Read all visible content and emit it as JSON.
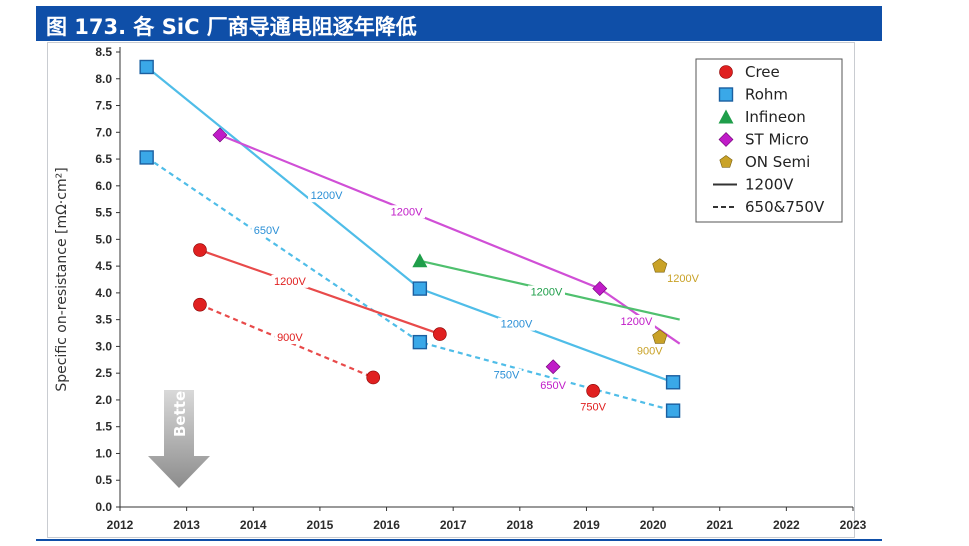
{
  "header": {
    "title": "图 173.  各 SiC 厂商导通电阻逐年降低"
  },
  "chart_data": {
    "type": "scatter",
    "title": "",
    "xlabel": "",
    "ylabel": "Specific on-resistance [mΩ·cm²]",
    "xlim": [
      2012,
      2023
    ],
    "ylim": [
      0,
      8.5
    ],
    "x_ticks": [
      2012,
      2013,
      2014,
      2015,
      2016,
      2017,
      2018,
      2019,
      2020,
      2021,
      2022,
      2023
    ],
    "y_ticks": [
      "0.0",
      "0.5",
      "1.0",
      "1.5",
      "2.0",
      "2.5",
      "3.0",
      "3.5",
      "4.0",
      "4.5",
      "5.0",
      "5.5",
      "6.0",
      "6.5",
      "7.0",
      "7.5",
      "8.0",
      "8.5"
    ],
    "grid": false,
    "legend_position": "top-right",
    "series": [
      {
        "name": "Cree",
        "marker": "circle",
        "color": "#e02020",
        "points": [
          [
            2013.2,
            4.8
          ],
          [
            2013.2,
            3.78
          ],
          [
            2015.8,
            2.42
          ],
          [
            2016.8,
            3.23
          ],
          [
            2019.1,
            2.17
          ]
        ]
      },
      {
        "name": "Rohm",
        "marker": "square",
        "color": "#3aa8e8",
        "points": [
          [
            2012.4,
            8.22
          ],
          [
            2012.4,
            6.53
          ],
          [
            2016.5,
            4.08
          ],
          [
            2016.5,
            3.08
          ],
          [
            2020.3,
            2.33
          ],
          [
            2020.3,
            1.8
          ]
        ]
      },
      {
        "name": "Infineon",
        "marker": "triangle",
        "color": "#1f9e4a",
        "points": [
          [
            2016.5,
            4.6
          ]
        ]
      },
      {
        "name": "ST Micro",
        "marker": "diamond",
        "color": "#c01cc8",
        "points": [
          [
            2013.5,
            6.95
          ],
          [
            2019.2,
            4.08
          ],
          [
            2018.5,
            2.62
          ]
        ]
      },
      {
        "name": "ON Semi",
        "marker": "pentagon",
        "color": "#c9a227",
        "points": [
          [
            2020.1,
            4.5
          ],
          [
            2020.1,
            3.17
          ]
        ]
      }
    ],
    "trend_lines": [
      {
        "style": "solid",
        "color": "#4fbde8",
        "points": [
          [
            2012.4,
            8.22
          ],
          [
            2016.5,
            4.08
          ],
          [
            2020.3,
            2.33
          ]
        ]
      },
      {
        "style": "dashed",
        "color": "#4fbde8",
        "points": [
          [
            2012.4,
            6.53
          ],
          [
            2016.5,
            3.08
          ],
          [
            2020.3,
            1.8
          ]
        ]
      },
      {
        "style": "solid",
        "color": "#e84a4a",
        "points": [
          [
            2013.2,
            4.8
          ],
          [
            2016.8,
            3.23
          ]
        ]
      },
      {
        "style": "dashed",
        "color": "#e84a4a",
        "points": [
          [
            2013.2,
            3.78
          ],
          [
            2015.8,
            2.42
          ]
        ]
      },
      {
        "style": "solid",
        "color": "#d04fd6",
        "points": [
          [
            2013.5,
            6.95
          ],
          [
            2019.2,
            4.08
          ],
          [
            2020.4,
            3.05
          ]
        ]
      },
      {
        "style": "solid",
        "color": "#4fc06e",
        "points": [
          [
            2016.5,
            4.6
          ],
          [
            2020.4,
            3.5
          ]
        ]
      }
    ],
    "annotations": [
      {
        "text": "1200V",
        "x": 2015.1,
        "y": 5.75,
        "color": "#2a8fd6"
      },
      {
        "text": "650V",
        "x": 2014.2,
        "y": 5.1,
        "color": "#2a8fd6"
      },
      {
        "text": "1200V",
        "x": 2014.55,
        "y": 4.15,
        "color": "#e02020"
      },
      {
        "text": "900V",
        "x": 2014.55,
        "y": 3.1,
        "color": "#e02020"
      },
      {
        "text": "1200V",
        "x": 2016.3,
        "y": 5.45,
        "color": "#c01cc8"
      },
      {
        "text": "1200V",
        "x": 2018.4,
        "y": 3.95,
        "color": "#1f9e4a"
      },
      {
        "text": "1200V",
        "x": 2017.95,
        "y": 3.35,
        "color": "#2a8fd6"
      },
      {
        "text": "750V",
        "x": 2017.8,
        "y": 2.4,
        "color": "#2a8fd6"
      },
      {
        "text": "650V",
        "x": 2018.5,
        "y": 2.2,
        "color": "#c01cc8"
      },
      {
        "text": "1200V",
        "x": 2019.75,
        "y": 3.4,
        "color": "#c01cc8"
      },
      {
        "text": "750V",
        "x": 2019.1,
        "y": 1.8,
        "color": "#e02020"
      },
      {
        "text": "1200V",
        "x": 2020.45,
        "y": 4.2,
        "color": "#c9a227"
      },
      {
        "text": "900V",
        "x": 2019.95,
        "y": 2.85,
        "color": "#c9a227"
      }
    ],
    "legend": {
      "entries": [
        "Cree",
        "Rohm",
        "Infineon",
        "ST Micro",
        "ON Semi",
        "1200V",
        "650&750V"
      ]
    },
    "arrow_label": "Better"
  }
}
